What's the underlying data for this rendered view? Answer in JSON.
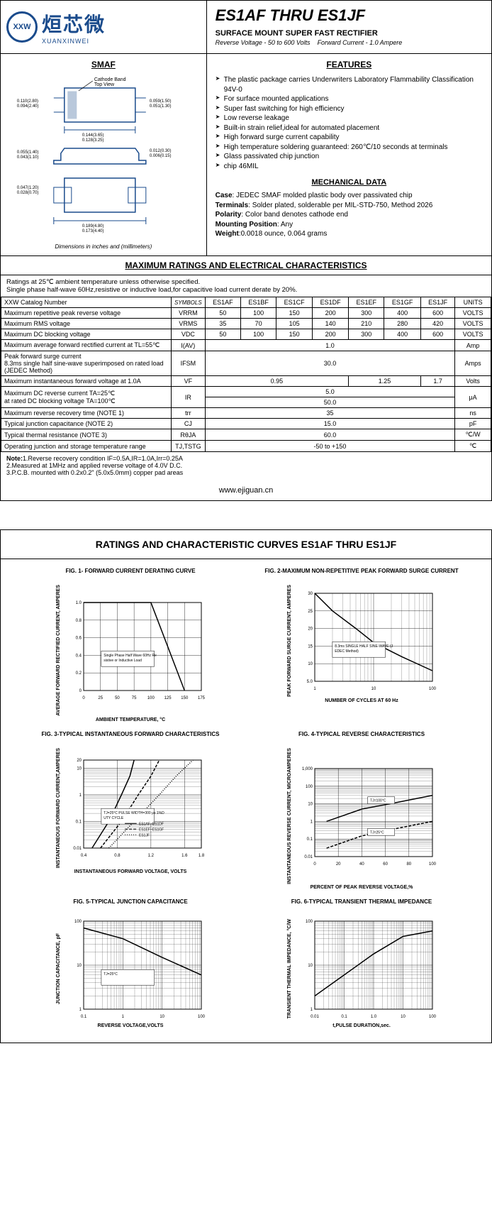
{
  "header": {
    "logo_cn": "烜芯微",
    "logo_en": "XUANXINWEI",
    "title": "ES1AF THRU ES1JF",
    "subtitle": "SURFACE MOUNT SUPER FAST RECTIFIER",
    "specs_left": "Reverse Voltage - 50 to 600 Volts",
    "specs_right": "Forward Current - 1.0 Ampere"
  },
  "smaf_title": "SMAF",
  "dim_caption": "Dimensions in inches and (millimeters)",
  "dimensions": {
    "cathode_label": "Cathode Band Top View",
    "d1": "0.110(2.80)",
    "d1b": "0.094(2.40)",
    "d2": "0.059(1.50)",
    "d2b": "0.051(1.30)",
    "d3": "0.144(3.65)",
    "d3b": "0.128(3.25)",
    "d4": "0.055(1.40)",
    "d4b": "0.043(1.10)",
    "d5": "0.012(0.30)",
    "d5b": "0.006(0.15)",
    "d6": "0.047(1.20)",
    "d6b": "0.028(0.70)",
    "d7": "0.189(4.80)",
    "d7b": "0.173(4.40)"
  },
  "features_title": "FEATURES",
  "features": [
    "The plastic package carries Underwriters Laboratory Flammability Classification 94V-0",
    "For surface mounted applications",
    "Super fast switching for high efficiency",
    "Low reverse leakage",
    "Built-in strain relief,ideal for automated placement",
    "High forward surge current capability",
    "High temperature soldering guaranteed: 260℃/10 seconds at terminals",
    "Glass passivated chip junction",
    "chip 46MIL"
  ],
  "mech_title": "MECHANICAL DATA",
  "mech": {
    "case": "JEDEC SMAF molded plastic body over passivated chip",
    "terminals": "Solder plated, solderable per MIL-STD-750, Method 2026",
    "polarity": "Color band denotes cathode end",
    "mounting": "Any",
    "weight": "0.0018 ounce, 0.064 grams"
  },
  "ratings_title": "MAXIMUM RATINGS AND ELECTRICAL CHARACTERISTICS",
  "ratings_intro": "Ratings at 25℃ ambient temperature unless otherwise specified.\nSingle phase half-wave 60Hz,resistive or inductive load,for capacitive load current derate by 20%.",
  "table": {
    "header": [
      "XXW Catalog  Number",
      "SYMBOLS",
      "ES1AF",
      "ES1BF",
      "ES1CF",
      "ES1DF",
      "ES1EF",
      "ES1GF",
      "ES1JF",
      "UNITS"
    ],
    "rows": [
      {
        "label": "Maximum repetitive peak reverse voltage",
        "sym": "VRRM",
        "vals": [
          "50",
          "100",
          "150",
          "200",
          "300",
          "400",
          "600"
        ],
        "unit": "VOLTS"
      },
      {
        "label": "Maximum RMS voltage",
        "sym": "VRMS",
        "vals": [
          "35",
          "70",
          "105",
          "140",
          "210",
          "280",
          "420"
        ],
        "unit": "VOLTS"
      },
      {
        "label": "Maximum DC blocking voltage",
        "sym": "VDC",
        "vals": [
          "50",
          "100",
          "150",
          "200",
          "300",
          "400",
          "600"
        ],
        "unit": "VOLTS"
      },
      {
        "label": "Maximum average forward rectified current at TL=55℃",
        "sym": "I(AV)",
        "span": "1.0",
        "unit": "Amp"
      },
      {
        "label": "Peak forward surge current\n8.3ms single half sine-wave superimposed on rated load (JEDEC Method)",
        "sym": "IFSM",
        "span": "30.0",
        "unit": "Amps"
      },
      {
        "label": "Maximum instantaneous forward voltage at 1.0A",
        "sym": "VF",
        "groups": [
          {
            "span": 4,
            "val": "0.95"
          },
          {
            "span": 2,
            "val": "1.25"
          },
          {
            "span": 1,
            "val": "1.7"
          }
        ],
        "unit": "Volts"
      },
      {
        "label": "Maximum DC reverse current     TA=25℃\nat rated DC blocking voltage     TA=100℃",
        "sym": "IR",
        "stack": [
          "5.0",
          "50.0"
        ],
        "unit": "μA"
      },
      {
        "label": "Maximum reverse recovery time      (NOTE 1)",
        "sym": "trr",
        "span": "35",
        "unit": "ns"
      },
      {
        "label": "Typical junction capacitance (NOTE 2)",
        "sym": "CJ",
        "span": "15.0",
        "unit": "pF"
      },
      {
        "label": "Typical thermal resistance (NOTE 3)",
        "sym": "RθJA",
        "span": "60.0",
        "unit": "℃/W"
      },
      {
        "label": "Operating junction and storage temperature range",
        "sym": "TJ,TSTG",
        "span": "-50 to +150",
        "unit": "℃"
      }
    ]
  },
  "notes": "Note:1.Reverse recovery condition IF=0.5A,IR=1.0A,Irr=0.25A\n        2.Measured at 1MHz and applied reverse voltage of 4.0V D.C.\n        3.P.C.B. mounted with 0.2x0.2\" (5.0x5.0mm) copper pad areas",
  "url": "www.ejiguan.cn",
  "curves_title": "RATINGS AND CHARACTERISTIC CURVES ES1AF THRU ES1JF",
  "charts": [
    {
      "title": "FIG. 1- FORWARD CURRENT DERATING CURVE",
      "ylabel": "AVERAGE FORWARD RECTIFIED CURRENT, AMPERES",
      "xlabel": "AMBIENT TEMPERATURE, °C",
      "type": "linear",
      "xticks": [
        "0",
        "25",
        "50",
        "75",
        "100",
        "125",
        "150",
        "175"
      ],
      "yticks": [
        "0",
        "0.2",
        "0.4",
        "0.6",
        "0.8",
        "1.0"
      ],
      "xlim": [
        0,
        175
      ],
      "ylim": [
        0,
        1.0
      ],
      "note": "Single Phase Half Wave 60Hz Resistive or Inductive Load",
      "curves": [
        [
          [
            0,
            1.0
          ],
          [
            100,
            1.0
          ],
          [
            150,
            0
          ]
        ]
      ]
    },
    {
      "title": "FIG. 2-MAXIMUM NON-REPETITIVE PEAK FORWARD SURGE CURRENT",
      "ylabel": "PEAK  FORWARD SURGE CURRENT, AMPERES",
      "xlabel": "NUMBER OF CYCLES AT 60 Hz",
      "type": "semilogx",
      "xticks": [
        "1",
        "10",
        "100"
      ],
      "yticks": [
        "5.0",
        "10",
        "15",
        "20",
        "25",
        "30"
      ],
      "xlim": [
        1,
        100
      ],
      "ylim": [
        5,
        30
      ],
      "note": "8.3ms SINGLE HALF SINE-WAVE (JEDEC Method)",
      "curves": [
        [
          [
            1,
            30
          ],
          [
            2,
            25
          ],
          [
            5,
            20
          ],
          [
            10,
            16
          ],
          [
            30,
            12
          ],
          [
            100,
            8
          ]
        ]
      ]
    },
    {
      "title": "FIG. 3-TYPICAL INSTANTANEOUS FORWARD CHARACTERISTICS",
      "ylabel": "INSTANTANEOUS FORWARD CURRENT,AMPERES",
      "xlabel": "INSTANTANEOUS FORWARD VOLTAGE, VOLTS",
      "type": "semilogy",
      "xticks": [
        "0.4",
        "0.8",
        "1.2",
        "1.6",
        "1.8"
      ],
      "yticks": [
        "0.01",
        "0.1",
        "1",
        "10",
        "20"
      ],
      "xlim": [
        0.4,
        1.8
      ],
      "ylim": [
        0.01,
        20
      ],
      "note": "TJ=25°C PULSE WIDTH=300 μs 1%DUTY CYCLE",
      "legend": [
        "ES1AF~ES1DF",
        "ES1EF~ES1GF",
        "ES1JF"
      ],
      "curves": [
        [
          [
            0.5,
            0.01
          ],
          [
            0.7,
            0.1
          ],
          [
            0.85,
            1
          ],
          [
            0.95,
            5
          ],
          [
            1.0,
            20
          ]
        ],
        [
          [
            0.6,
            0.01
          ],
          [
            0.85,
            0.1
          ],
          [
            1.05,
            1
          ],
          [
            1.2,
            5
          ],
          [
            1.3,
            20
          ]
        ],
        [
          [
            0.7,
            0.01
          ],
          [
            1.0,
            0.1
          ],
          [
            1.3,
            1
          ],
          [
            1.5,
            5
          ],
          [
            1.7,
            20
          ]
        ]
      ]
    },
    {
      "title": "FIG. 4-TYPICAL REVERSE CHARACTERISTICS",
      "ylabel": "INSTANTANEOUS REVERSE CURRENT, MICROAMPERES",
      "xlabel": "PERCENT OF PEAK REVERSE VOLTAGE,%",
      "type": "semilogy",
      "xticks": [
        "0",
        "20",
        "40",
        "60",
        "80",
        "100"
      ],
      "yticks": [
        "0.01",
        "0.1",
        "1",
        "10",
        "100",
        "1,000"
      ],
      "xlim": [
        0,
        100
      ],
      "ylim": [
        0.01,
        1000
      ],
      "note_top": "TJ=100°C",
      "note_bot": "TJ=25°C",
      "curves": [
        [
          [
            10,
            1
          ],
          [
            40,
            5
          ],
          [
            70,
            12
          ],
          [
            100,
            30
          ]
        ],
        [
          [
            10,
            0.03
          ],
          [
            40,
            0.15
          ],
          [
            70,
            0.4
          ],
          [
            100,
            1
          ]
        ]
      ]
    },
    {
      "title": "FIG. 5-TYPICAL JUNCTION CAPACITANCE",
      "ylabel": "JUNCTION CAPACITANCE, pF",
      "xlabel": "REVERSE VOLTAGE,VOLTS",
      "type": "loglog",
      "xticks": [
        "0.1",
        "1",
        "10",
        "100"
      ],
      "yticks": [
        "1",
        "10",
        "100"
      ],
      "xlim": [
        0.1,
        100
      ],
      "ylim": [
        1,
        100
      ],
      "note": "TJ=25°C",
      "curves": [
        [
          [
            0.1,
            70
          ],
          [
            1,
            40
          ],
          [
            10,
            15
          ],
          [
            100,
            6
          ]
        ]
      ]
    },
    {
      "title": "FIG. 6-TYPICAL TRANSIENT THERMAL IMPEDANCE",
      "ylabel": "TRANSIENT THERMAL IMPEDANCE, °C/W",
      "xlabel": "t,PULSE DURATION,sec.",
      "type": "loglog",
      "xticks": [
        "0.01",
        "0.1",
        "1.0",
        "10",
        "100"
      ],
      "yticks": [
        "1",
        "10",
        "100"
      ],
      "xlim": [
        0.01,
        100
      ],
      "ylim": [
        1,
        100
      ],
      "curves": [
        [
          [
            0.01,
            2
          ],
          [
            0.1,
            6
          ],
          [
            1,
            18
          ],
          [
            10,
            45
          ],
          [
            100,
            60
          ]
        ]
      ]
    }
  ],
  "colors": {
    "border": "#000000",
    "logo": "#1a4b8c",
    "text": "#000000",
    "bg": "#ffffff"
  }
}
